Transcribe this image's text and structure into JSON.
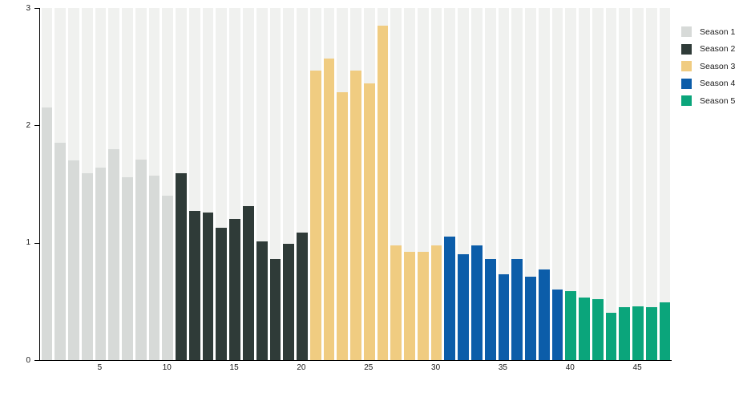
{
  "chart_data": {
    "type": "bar",
    "title": "",
    "xlabel": "",
    "ylabel": "",
    "ylim": [
      0,
      3
    ],
    "yticks": [
      0,
      1,
      2,
      3
    ],
    "xticks": [
      5,
      10,
      15,
      20,
      25,
      30,
      35,
      40,
      45
    ],
    "x_start": 1,
    "total_bars": 47,
    "grid": false,
    "background_track_value": 3,
    "legend_position": "top-right",
    "series": [
      {
        "name": "Season 1",
        "color": "#d7dad8",
        "x": [
          1,
          2,
          3,
          4,
          5,
          6,
          7,
          8,
          9,
          10
        ],
        "values": [
          2.15,
          1.85,
          1.7,
          1.59,
          1.64,
          1.8,
          1.56,
          1.71,
          1.57,
          1.4
        ]
      },
      {
        "name": "Season 2",
        "color": "#2f3b38",
        "x": [
          11,
          12,
          13,
          14,
          15,
          16,
          17,
          18,
          19,
          20
        ],
        "values": [
          1.59,
          1.27,
          1.26,
          1.13,
          1.2,
          1.31,
          1.01,
          0.86,
          0.99,
          1.09
        ]
      },
      {
        "name": "Season 3",
        "color": "#f0cc81",
        "x": [
          21,
          22,
          23,
          24,
          25,
          26,
          27,
          28,
          29,
          30
        ],
        "values": [
          2.47,
          2.57,
          2.28,
          2.47,
          2.36,
          2.85,
          0.98,
          0.92,
          0.92,
          0.98
        ]
      },
      {
        "name": "Season 4",
        "color": "#0c5da9",
        "x": [
          31,
          32,
          33,
          34,
          35,
          36,
          37,
          38,
          39
        ],
        "values": [
          1.05,
          0.9,
          0.98,
          0.86,
          0.73,
          0.86,
          0.71,
          0.77,
          0.6
        ]
      },
      {
        "name": "Season 5",
        "color": "#0ba57b",
        "x": [
          40,
          41,
          42,
          43,
          44,
          45,
          46,
          47
        ],
        "values": [
          0.59,
          0.53,
          0.52,
          0.4,
          0.45,
          0.46,
          0.45,
          0.49
        ]
      }
    ],
    "colors": {
      "background_track": "#f0f1ef",
      "axis": "#000000",
      "tick_text": "#1a1a1a",
      "page_background": "#ffffff"
    }
  }
}
